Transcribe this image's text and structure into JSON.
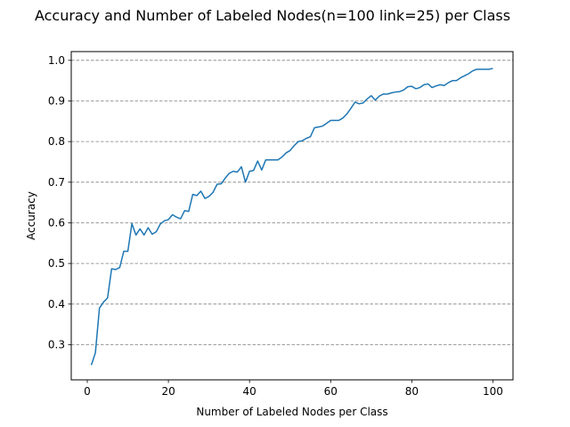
{
  "chart_data": {
    "type": "line",
    "title": "Accuracy and Number of Labeled Nodes(n=100 link=25) per Class",
    "xlabel": "Number of Labeled Nodes per Class",
    "ylabel": "Accuracy",
    "xlim": [
      -3.95,
      104.95
    ],
    "ylim": [
      0.2135,
      1.0215
    ],
    "xticks": [
      0,
      20,
      40,
      60,
      80,
      100
    ],
    "yticks": [
      0.3,
      0.4,
      0.5,
      0.6,
      0.7,
      0.8,
      0.9,
      1.0
    ],
    "xtick_labels": [
      "0",
      "20",
      "40",
      "60",
      "80",
      "100"
    ],
    "ytick_labels": [
      "0.3",
      "0.4",
      "0.5",
      "0.6",
      "0.7",
      "0.8",
      "0.9",
      "1.0"
    ],
    "grid": "horizontal dashed",
    "line_color": "#1f77b4",
    "grid_color": "#808080",
    "series": [
      {
        "x": [
          1,
          2,
          3,
          4,
          5,
          6,
          7,
          8,
          9,
          10,
          11,
          12,
          13,
          14,
          15,
          16,
          17,
          18,
          19,
          20,
          21,
          22,
          23,
          24,
          25,
          26,
          27,
          28,
          29,
          30,
          31,
          32,
          33,
          34,
          35,
          36,
          37,
          38,
          39,
          40,
          41,
          42,
          43,
          44,
          45,
          46,
          47,
          48,
          49,
          50,
          51,
          52,
          53,
          54,
          55,
          56,
          57,
          58,
          59,
          60,
          61,
          62,
          63,
          64,
          65,
          66,
          67,
          68,
          69,
          70,
          71,
          72,
          73,
          74,
          75,
          76,
          77,
          78,
          79,
          80,
          81,
          82,
          83,
          84,
          85,
          86,
          87,
          88,
          89,
          90,
          91,
          92,
          93,
          94,
          95,
          96,
          97,
          98,
          99,
          100
        ],
        "values": [
          0.25,
          0.28,
          0.39,
          0.405,
          0.415,
          0.487,
          0.485,
          0.49,
          0.53,
          0.53,
          0.598,
          0.57,
          0.585,
          0.57,
          0.588,
          0.572,
          0.578,
          0.597,
          0.605,
          0.608,
          0.62,
          0.614,
          0.61,
          0.63,
          0.628,
          0.67,
          0.667,
          0.678,
          0.66,
          0.665,
          0.675,
          0.695,
          0.696,
          0.71,
          0.722,
          0.727,
          0.725,
          0.738,
          0.7,
          0.727,
          0.729,
          0.752,
          0.73,
          0.755,
          0.755,
          0.755,
          0.755,
          0.762,
          0.772,
          0.778,
          0.79,
          0.8,
          0.802,
          0.808,
          0.812,
          0.834,
          0.836,
          0.838,
          0.845,
          0.852,
          0.852,
          0.852,
          0.858,
          0.868,
          0.882,
          0.897,
          0.893,
          0.895,
          0.905,
          0.913,
          0.902,
          0.912,
          0.917,
          0.917,
          0.92,
          0.922,
          0.923,
          0.927,
          0.935,
          0.936,
          0.93,
          0.933,
          0.94,
          0.942,
          0.933,
          0.937,
          0.94,
          0.938,
          0.945,
          0.95,
          0.95,
          0.957,
          0.962,
          0.967,
          0.974,
          0.978,
          0.978,
          0.978,
          0.978,
          0.98
        ]
      }
    ]
  }
}
